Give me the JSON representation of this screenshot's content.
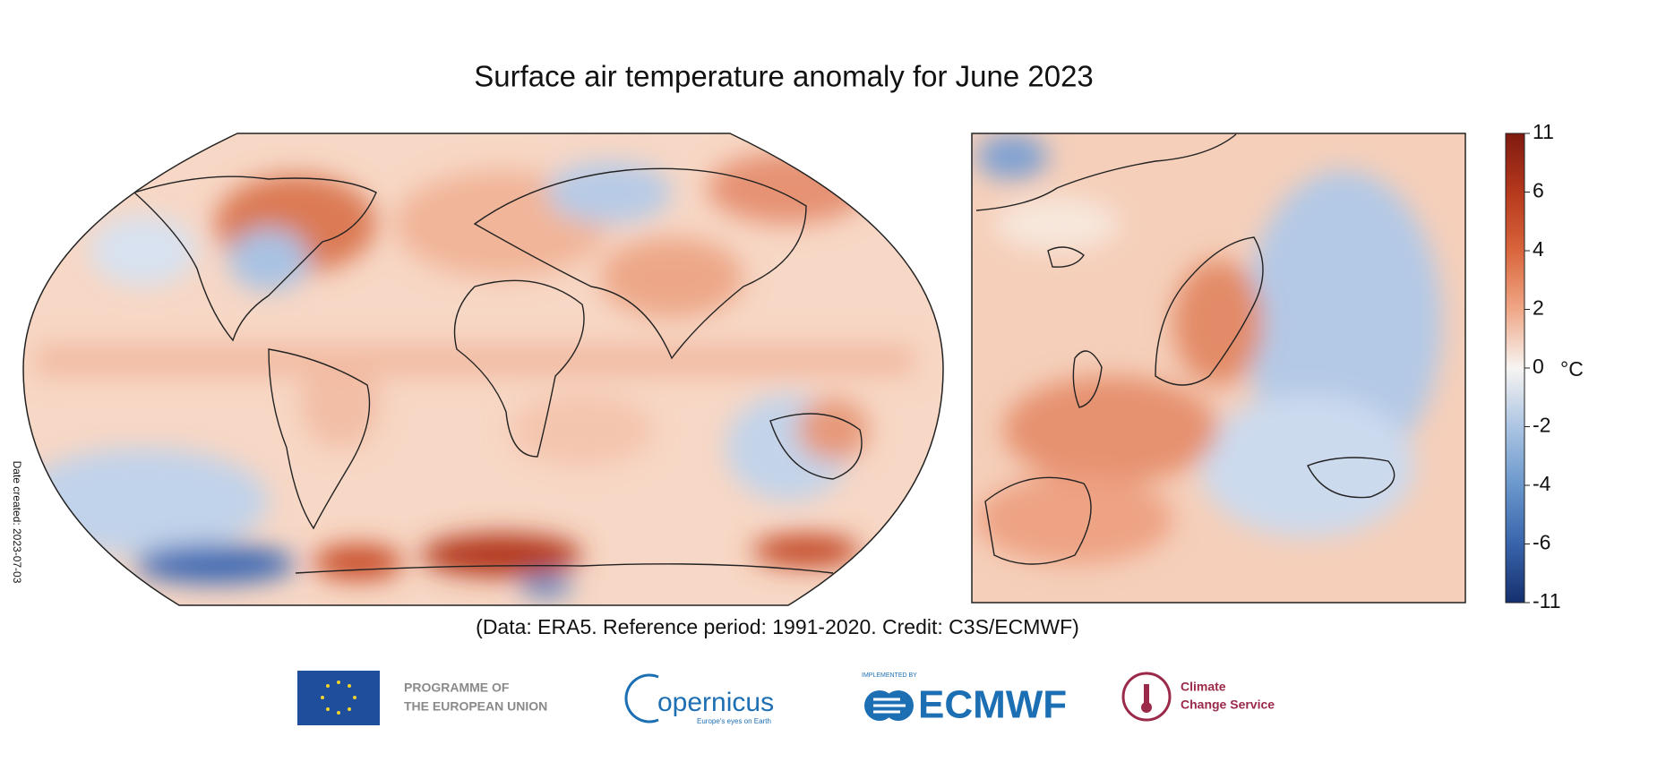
{
  "title": "Surface air temperature anomaly for June 2023",
  "colorbar": {
    "ticks": [
      11,
      6,
      4,
      2,
      0,
      -2,
      -4,
      -6,
      -11
    ],
    "unit": "°C"
  },
  "caption": "(Data: ERA5.  Reference period: 1991-2020.  Credit: C3S/ECMWF)",
  "date_created": "Date created: 2023-07-03",
  "logos": {
    "eu_line1": "PROGRAMME OF",
    "eu_line2": "THE EUROPEAN UNION",
    "copernicus": "opernicus",
    "copernicus_tagline": "Europe's eyes on Earth",
    "ecmwf_top": "IMPLEMENTED BY",
    "ecmwf": "ECMWF",
    "c3s_line1": "Climate",
    "c3s_line2": "Change Service"
  }
}
